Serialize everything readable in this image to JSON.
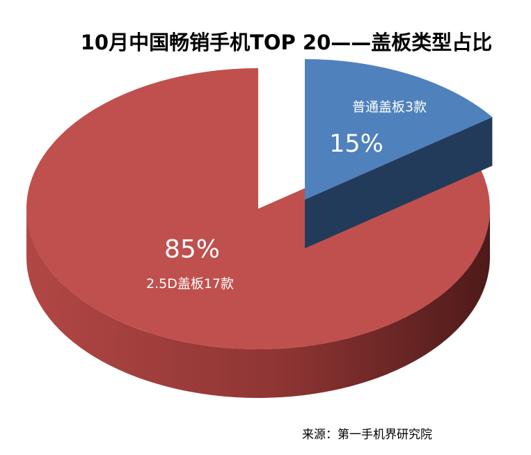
{
  "chart_data": {
    "type": "pie",
    "title": "10月中国畅销手机TOP 20——盖板类型占比",
    "slices": [
      {
        "name": "普通盖板",
        "count_label": "普通盖板3款",
        "count": 3,
        "value": 15,
        "percent_label": "15%",
        "color": "#4f81bd",
        "exploded": true
      },
      {
        "name": "2.5D盖板",
        "count_label": "2.5D盖板17款",
        "count": 17,
        "value": 85,
        "percent_label": "85%",
        "color": "#c0504d",
        "exploded": false
      }
    ],
    "source": "来源：第一手机界研究院"
  }
}
